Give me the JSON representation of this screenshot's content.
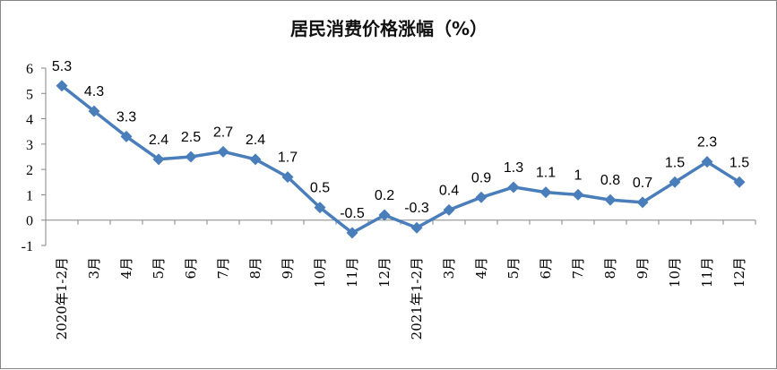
{
  "chart_data": {
    "type": "line",
    "title": "居民消费价格涨幅（%）",
    "xlabel": "",
    "ylabel": "",
    "ylim": [
      -1,
      6
    ],
    "yticks": [
      "6",
      "5",
      "4",
      "3",
      "2",
      "1",
      "0",
      "-1"
    ],
    "grid": false,
    "legend": "none",
    "categories": [
      "2020年1-2月",
      "3月",
      "4月",
      "5月",
      "6月",
      "7月",
      "8月",
      "9月",
      "10月",
      "11月",
      "12月",
      "2021年1-2月",
      "3月",
      "4月",
      "5月",
      "6月",
      "7月",
      "8月",
      "9月",
      "10月",
      "11月",
      "12月"
    ],
    "series": [
      {
        "values": [
          5.3,
          4.3,
          3.3,
          2.4,
          2.5,
          2.7,
          2.4,
          1.7,
          0.5,
          -0.5,
          0.2,
          -0.3,
          0.4,
          0.9,
          1.3,
          1.1,
          1,
          0.8,
          0.7,
          1.5,
          2.3,
          1.5
        ],
        "labels": [
          "5.3",
          "4.3",
          "3.3",
          "2.4",
          "2.5",
          "2.7",
          "2.4",
          "1.7",
          "0.5",
          "-0.5",
          "0.2",
          "-0.3",
          "0.4",
          "0.9",
          "1.3",
          "1.1",
          "1",
          "0.8",
          "0.7",
          "1.5",
          "2.3",
          "1.5"
        ],
        "color": "#4a7ebb"
      }
    ]
  }
}
